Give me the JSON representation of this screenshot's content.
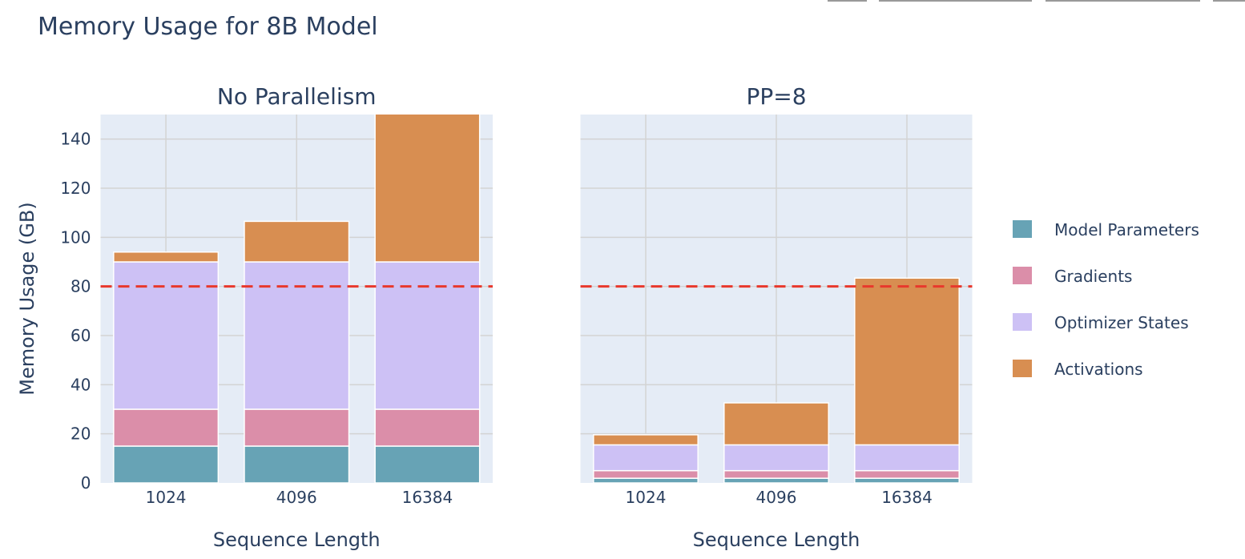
{
  "chart_data": {
    "type": "bar",
    "barmode": "stack",
    "title": "Memory Usage for 8B Model",
    "ylabel": "Memory Usage (GB)",
    "ylim": [
      0,
      150
    ],
    "yticks": [
      0,
      20,
      40,
      60,
      80,
      100,
      120,
      140
    ],
    "grid": true,
    "legend_placement": "right",
    "threshold": {
      "value": 80,
      "color": "#e8382c",
      "style": "dashed"
    },
    "series_meta": [
      {
        "name": "Model Parameters",
        "color": "#67a3b5"
      },
      {
        "name": "Gradients",
        "color": "#db8ea9"
      },
      {
        "name": "Optimizer States",
        "color": "#cdc1f5"
      },
      {
        "name": "Activations",
        "color": "#d88e51"
      }
    ],
    "subplots": [
      {
        "title": "No Parallelism",
        "xlabel": "Sequence Length",
        "categories": [
          "1024",
          "4096",
          "16384"
        ],
        "series": [
          {
            "name": "Model Parameters",
            "values": [
              15,
              15,
              15
            ]
          },
          {
            "name": "Gradients",
            "values": [
              15,
              15,
              15
            ]
          },
          {
            "name": "Optimizer States",
            "values": [
              60,
              60,
              60
            ]
          },
          {
            "name": "Activations",
            "values": [
              4,
              16.5,
              68
            ]
          }
        ]
      },
      {
        "title": "PP=8",
        "xlabel": "Sequence Length",
        "categories": [
          "1024",
          "4096",
          "16384"
        ],
        "series": [
          {
            "name": "Model Parameters",
            "values": [
              1.9,
              1.9,
              1.9
            ]
          },
          {
            "name": "Gradients",
            "values": [
              3.1,
              3.1,
              3.1
            ]
          },
          {
            "name": "Optimizer States",
            "values": [
              10.5,
              10.5,
              10.5
            ]
          },
          {
            "name": "Activations",
            "values": [
              4.1,
              17.1,
              67.9
            ]
          }
        ]
      }
    ]
  }
}
